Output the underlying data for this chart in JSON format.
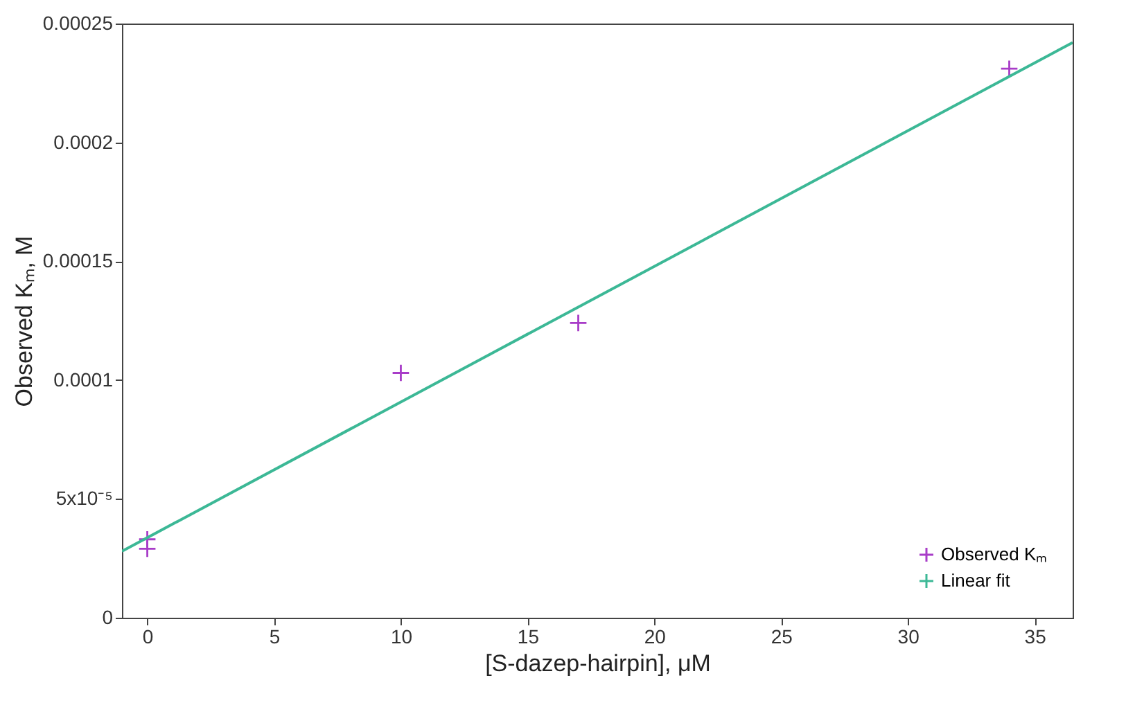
{
  "chart_data": {
    "type": "scatter",
    "xlabel": "[S-dazep-hairpin], μM",
    "ylabel": "Observed Kₘ, M",
    "xlim": [
      -1,
      36.5
    ],
    "xticks": [
      0,
      5,
      10,
      15,
      20,
      25,
      30,
      35
    ],
    "ylim": [
      0,
      0.00025
    ],
    "yticks": [
      0,
      {
        "value": 5e-05,
        "label": "5x10⁻⁵"
      },
      0.0001,
      0.00015,
      0.0002,
      0.00025
    ],
    "grid": false,
    "legend": "bottom right",
    "series": [
      {
        "name": "Observed Kₘ",
        "marker": "cross",
        "color": "#a83cc8",
        "x": [
          0,
          0,
          10,
          17,
          34
        ],
        "values": [
          3.3e-05,
          2.9e-05,
          0.000103,
          0.000124,
          0.000231
        ]
      },
      {
        "name": "Linear fit",
        "type": "line",
        "color": "#3cb896",
        "x": [
          -1,
          36.5
        ],
        "values": [
          2.8e-05,
          0.000242
        ]
      }
    ]
  }
}
